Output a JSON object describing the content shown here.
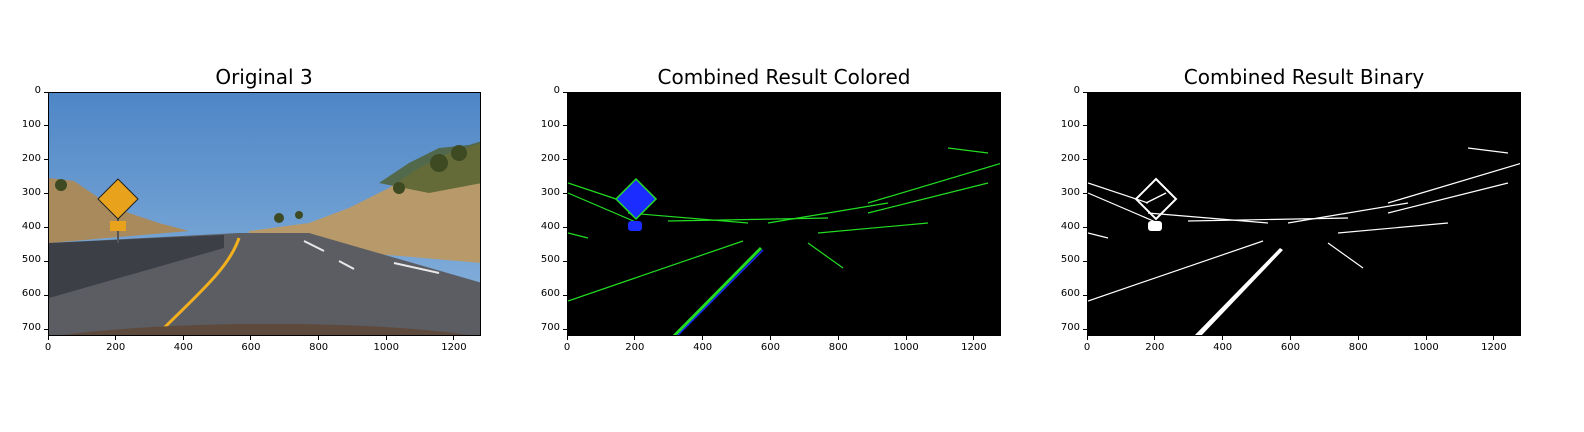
{
  "panels": [
    {
      "title": "Original 3",
      "x_ticks": [
        "0",
        "200",
        "400",
        "600",
        "800",
        "1000",
        "1200"
      ],
      "y_ticks": [
        "0",
        "100",
        "200",
        "300",
        "400",
        "500",
        "600",
        "700"
      ]
    },
    {
      "title": "Combined Result Colored",
      "x_ticks": [
        "0",
        "200",
        "400",
        "600",
        "800",
        "1000",
        "1200"
      ],
      "y_ticks": [
        "0",
        "100",
        "200",
        "300",
        "400",
        "500",
        "600",
        "700"
      ]
    },
    {
      "title": "Combined Result Binary",
      "x_ticks": [
        "0",
        "200",
        "400",
        "600",
        "800",
        "1000",
        "1200"
      ],
      "y_ticks": [
        "0",
        "100",
        "200",
        "300",
        "400",
        "500",
        "600",
        "700"
      ]
    }
  ],
  "axis": {
    "x_max": 1280,
    "y_max": 720
  },
  "colors": {
    "sky": "#5a8fc9",
    "road": "#5b5d63",
    "hill": "#b89a6a",
    "sign": "#e8a21b",
    "lane_yellow": "#f2b01e",
    "edge_green": "#22dd22",
    "edge_blue": "#1a2cff"
  }
}
